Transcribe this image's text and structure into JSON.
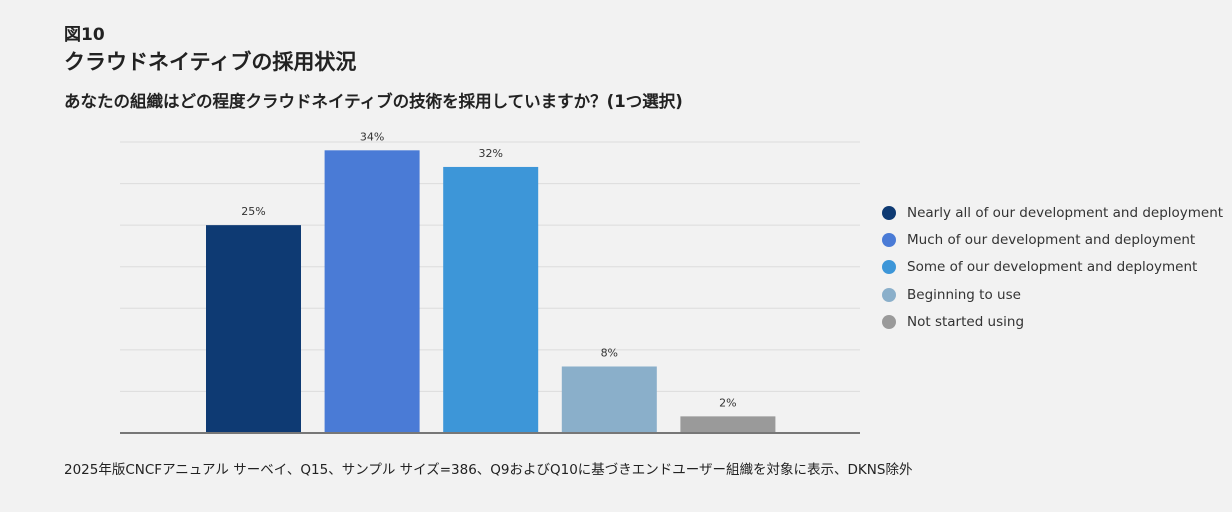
{
  "header": {
    "figure_label": "図10",
    "title": "クラウドネイティブの採用状況",
    "subtitle": "あなたの組織はどの程度クラウドネイティブの技術を採用していますか？(1つ選択)"
  },
  "chart_data": {
    "type": "bar",
    "categories": [
      "Nearly all of our development and deployment",
      "Much of our development and deployment",
      "Some of our development and deployment",
      "Beginning to use",
      "Not started using"
    ],
    "values": [
      25,
      34,
      32,
      8,
      2
    ],
    "data_labels": [
      "25%",
      "34%",
      "32%",
      "8%",
      "2%"
    ],
    "colors": [
      "#0e3a73",
      "#4a7bd6",
      "#3d96d8",
      "#8aafca",
      "#9a9a9a"
    ],
    "ylim": [
      0,
      35
    ],
    "grid_step": 5,
    "grid": true,
    "legend_position": "right",
    "xlabel": "",
    "ylabel": ""
  },
  "footnote": "2025年版CNCFアニュアル サーベイ、Q15、サンプル サイズ=386、Q9およびQ10に基づきエンドユーザー組織を対象に表示、DKNS除外"
}
